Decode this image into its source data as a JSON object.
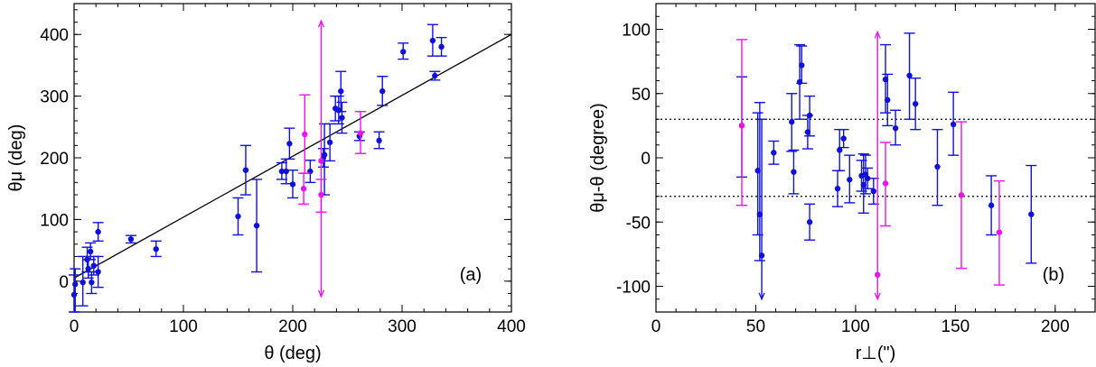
{
  "chart_data": [
    {
      "panel": "a",
      "type": "scatter",
      "panel_label": "(a)",
      "xlabel": "θ (deg)",
      "ylabel": "θμ (deg)",
      "xlim": [
        0,
        400
      ],
      "ylim": [
        -50,
        450
      ],
      "xticks": [
        0,
        100,
        200,
        300,
        400
      ],
      "yticks": [
        0,
        100,
        200,
        300,
        400
      ],
      "grid": false,
      "fit_line": {
        "x": [
          0,
          400
        ],
        "y": [
          5,
          400
        ]
      },
      "series": [
        {
          "color": "#1010dd",
          "points": [
            {
              "x": 0,
              "y": -22,
              "ylo": -60,
              "yhi": 10
            },
            {
              "x": 1,
              "y": -5,
              "ylo": -50,
              "yhi": 20
            },
            {
              "x": 8,
              "y": -2,
              "ylo": -40,
              "yhi": 40
            },
            {
              "x": 12,
              "y": 35,
              "ylo": 15,
              "yhi": 55
            },
            {
              "x": 13,
              "y": 20,
              "ylo": 5,
              "yhi": 35
            },
            {
              "x": 15,
              "y": 48,
              "ylo": 35,
              "yhi": 62
            },
            {
              "x": 16,
              "y": -2,
              "ylo": -20,
              "yhi": 15
            },
            {
              "x": 18,
              "y": 25,
              "ylo": 10,
              "yhi": 40
            },
            {
              "x": 22,
              "y": 15,
              "ylo": -10,
              "yhi": 40
            },
            {
              "x": 22,
              "y": 80,
              "ylo": 65,
              "yhi": 95
            },
            {
              "x": 52,
              "y": 68,
              "ylo": 62,
              "yhi": 74
            },
            {
              "x": 75,
              "y": 52,
              "ylo": 40,
              "yhi": 65
            },
            {
              "x": 150,
              "y": 105,
              "ylo": 75,
              "yhi": 135
            },
            {
              "x": 157,
              "y": 180,
              "ylo": 140,
              "yhi": 220
            },
            {
              "x": 167,
              "y": 90,
              "ylo": 15,
              "yhi": 165
            },
            {
              "x": 190,
              "y": 178,
              "ylo": 165,
              "yhi": 192
            },
            {
              "x": 194,
              "y": 178,
              "ylo": 158,
              "yhi": 198
            },
            {
              "x": 197,
              "y": 223,
              "ylo": 198,
              "yhi": 248
            },
            {
              "x": 200,
              "y": 157,
              "ylo": 135,
              "yhi": 180
            },
            {
              "x": 216,
              "y": 178,
              "ylo": 160,
              "yhi": 196
            },
            {
              "x": 228,
              "y": 200,
              "ylo": 185,
              "yhi": 215
            },
            {
              "x": 229,
              "y": 205,
              "ylo": 140,
              "yhi": 255
            },
            {
              "x": 234,
              "y": 225,
              "ylo": 195,
              "yhi": 255
            },
            {
              "x": 239,
              "y": 280,
              "ylo": 260,
              "yhi": 300
            },
            {
              "x": 242,
              "y": 277,
              "ylo": 255,
              "yhi": 300
            },
            {
              "x": 244,
              "y": 308,
              "ylo": 275,
              "yhi": 340
            },
            {
              "x": 245,
              "y": 265,
              "ylo": 240,
              "yhi": 290
            },
            {
              "x": 261,
              "y": 235,
              "ylo": 228,
              "yhi": 242
            },
            {
              "x": 279,
              "y": 228,
              "ylo": 215,
              "yhi": 242
            },
            {
              "x": 282,
              "y": 308,
              "ylo": 285,
              "yhi": 332
            },
            {
              "x": 301,
              "y": 372,
              "ylo": 360,
              "yhi": 386
            },
            {
              "x": 328,
              "y": 390,
              "ylo": 365,
              "yhi": 416
            },
            {
              "x": 330,
              "y": 333,
              "ylo": 326,
              "yhi": 340
            },
            {
              "x": 336,
              "y": 380,
              "ylo": 365,
              "yhi": 395
            }
          ]
        },
        {
          "color": "#ee11ee",
          "points": [
            {
              "x": 210,
              "y": 150,
              "ylo": 125,
              "yhi": 175
            },
            {
              "x": 211,
              "y": 238,
              "ylo": 175,
              "yhi": 302
            },
            {
              "x": 226,
              "y": 140,
              "ylo": 112,
              "yhi": 165
            },
            {
              "x": 226,
              "y": 195,
              "ylo": -25,
              "yhi": 422,
              "arrows": true
            },
            {
              "x": 262,
              "y": 240,
              "ylo": 207,
              "yhi": 275
            }
          ]
        }
      ]
    },
    {
      "panel": "b",
      "type": "scatter",
      "panel_label": "(b)",
      "xlabel": "r⊥(\")",
      "ylabel": "θμ-θ (degree)",
      "xlim": [
        0,
        220
      ],
      "ylim": [
        -120,
        120
      ],
      "xticks": [
        0,
        50,
        100,
        150,
        200
      ],
      "yticks": [
        -100,
        -50,
        0,
        50,
        100
      ],
      "grid": false,
      "reference_lines": [
        30,
        -30
      ],
      "series": [
        {
          "color": "#1010dd",
          "points": [
            {
              "x": 43,
              "y": 25,
              "ylo": -15,
              "yhi": 63
            },
            {
              "x": 51,
              "y": -10,
              "ylo": -60,
              "yhi": 35
            },
            {
              "x": 52,
              "y": -44,
              "ylo": -80,
              "yhi": 43
            },
            {
              "x": 53,
              "y": -76,
              "ylo": -110,
              "yhi": 30,
              "arrow_down": true
            },
            {
              "x": 59,
              "y": 4,
              "ylo": -5,
              "yhi": 13
            },
            {
              "x": 68,
              "y": 28,
              "ylo": 5,
              "yhi": 50
            },
            {
              "x": 69,
              "y": -11,
              "ylo": -28,
              "yhi": 6
            },
            {
              "x": 72,
              "y": 59,
              "ylo": 30,
              "yhi": 88
            },
            {
              "x": 73,
              "y": 72,
              "ylo": 58,
              "yhi": 87
            },
            {
              "x": 76,
              "y": 20,
              "ylo": 7,
              "yhi": 33
            },
            {
              "x": 77,
              "y": -50,
              "ylo": -64,
              "yhi": -36
            },
            {
              "x": 77,
              "y": 33,
              "ylo": 17,
              "yhi": 48
            },
            {
              "x": 91,
              "y": -24,
              "ylo": -38,
              "yhi": -10
            },
            {
              "x": 92,
              "y": 6,
              "ylo": -10,
              "yhi": 22
            },
            {
              "x": 94,
              "y": 15,
              "ylo": 8,
              "yhi": 22
            },
            {
              "x": 97,
              "y": -17,
              "ylo": -35,
              "yhi": 2
            },
            {
              "x": 103,
              "y": -14,
              "ylo": -26,
              "yhi": -2
            },
            {
              "x": 104,
              "y": -21,
              "ylo": -43,
              "yhi": 3
            },
            {
              "x": 105,
              "y": -13,
              "ylo": -28,
              "yhi": 2
            },
            {
              "x": 106,
              "y": -16,
              "ylo": -24,
              "yhi": -8
            },
            {
              "x": 109,
              "y": -26,
              "ylo": -36,
              "yhi": -16
            },
            {
              "x": 115,
              "y": 61,
              "ylo": 35,
              "yhi": 88
            },
            {
              "x": 116,
              "y": 45,
              "ylo": 25,
              "yhi": 65
            },
            {
              "x": 120,
              "y": 23,
              "ylo": 10,
              "yhi": 37
            },
            {
              "x": 127,
              "y": 64,
              "ylo": 30,
              "yhi": 97
            },
            {
              "x": 130,
              "y": 42,
              "ylo": 22,
              "yhi": 62
            },
            {
              "x": 141,
              "y": -7,
              "ylo": -37,
              "yhi": 22
            },
            {
              "x": 149,
              "y": 26,
              "ylo": 2,
              "yhi": 51
            },
            {
              "x": 168,
              "y": -37,
              "ylo": -60,
              "yhi": -14
            },
            {
              "x": 188,
              "y": -44,
              "ylo": -82,
              "yhi": -6
            }
          ]
        },
        {
          "color": "#ee11ee",
          "points": [
            {
              "x": 43,
              "y": 25,
              "ylo": -37,
              "yhi": 92
            },
            {
              "x": 111,
              "y": -91,
              "ylo": -110,
              "yhi": 98,
              "arrows": true
            },
            {
              "x": 115,
              "y": -20,
              "ylo": -53,
              "yhi": 12
            },
            {
              "x": 153,
              "y": -29,
              "ylo": -86,
              "yhi": 28
            },
            {
              "x": 172,
              "y": -58,
              "ylo": -99,
              "yhi": -18
            }
          ]
        }
      ]
    }
  ]
}
